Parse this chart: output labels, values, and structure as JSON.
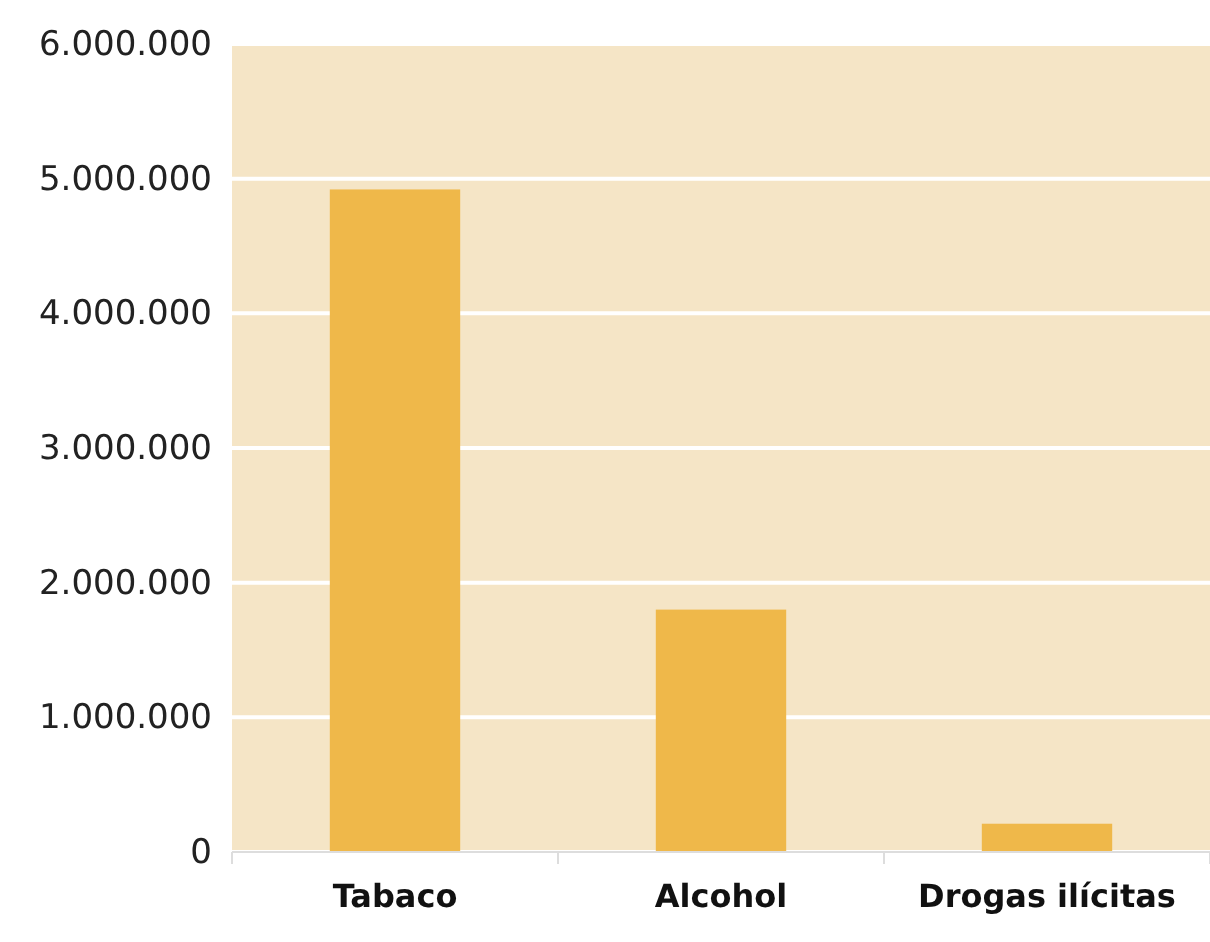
{
  "chart_data": {
    "type": "bar",
    "categories": [
      "Tabaco",
      "Alcohol",
      "Drogas ilícitas"
    ],
    "values": [
      4920000,
      1800000,
      210000
    ],
    "color": "#efb84a",
    "ylim": [
      0,
      6000000
    ],
    "yticks": [
      {
        "value": 0,
        "label": "0"
      },
      {
        "value": 1000000,
        "label": "1.000.000"
      },
      {
        "value": 2000000,
        "label": "2.000.000"
      },
      {
        "value": 3000000,
        "label": "3.000.000"
      },
      {
        "value": 4000000,
        "label": "4.000.000"
      },
      {
        "value": 5000000,
        "label": "5.000.000"
      },
      {
        "value": 6000000,
        "label": "6.000.000"
      }
    ],
    "grid": "y"
  }
}
